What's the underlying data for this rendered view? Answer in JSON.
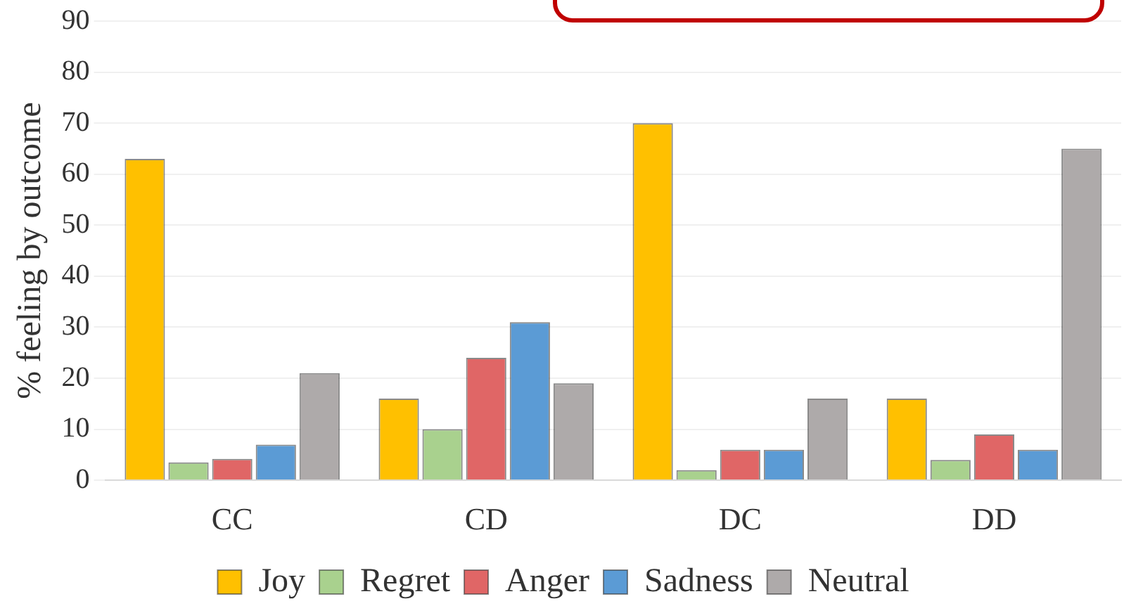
{
  "chart_data": {
    "type": "bar",
    "ylabel": "% feeling by outcome",
    "categories": [
      "CC",
      "CD",
      "DC",
      "DD"
    ],
    "series": [
      {
        "name": "Joy",
        "color": "#ffc000",
        "values": [
          63,
          16,
          70,
          16
        ]
      },
      {
        "name": "Regret",
        "color": "#a9d18e",
        "values": [
          3.5,
          10,
          2,
          4
        ]
      },
      {
        "name": "Anger",
        "color": "#e06666",
        "values": [
          4.2,
          24,
          6,
          9
        ]
      },
      {
        "name": "Sadness",
        "color": "#5b9bd5",
        "values": [
          7,
          31,
          6,
          6
        ]
      },
      {
        "name": "Neutral",
        "color": "#aeaaaa",
        "values": [
          21,
          19,
          16,
          65
        ]
      }
    ],
    "ylim": [
      0,
      90
    ],
    "yticks": [
      0,
      10,
      20,
      30,
      40,
      50,
      60,
      70,
      80,
      90
    ],
    "grid": "y",
    "legend": "bottom"
  }
}
